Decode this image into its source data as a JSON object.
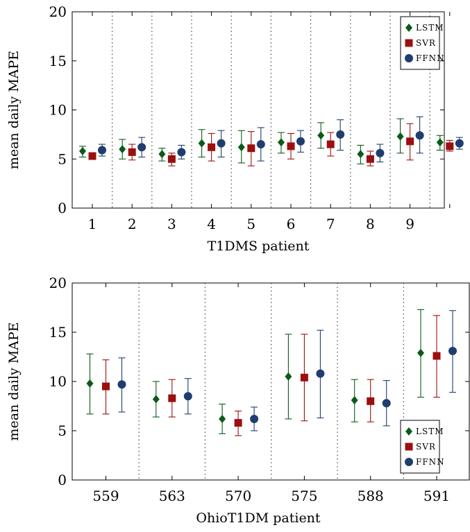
{
  "colors": {
    "LSTM": "#0b5a17",
    "SVR": "#9c0f0f",
    "FFNN": "#1f3d6e"
  },
  "chart_data": [
    {
      "type": "scatter",
      "subtype": "error-bar",
      "xlabel": "T1DMS patient",
      "ylabel": "mean daily MAPE",
      "ylim": [
        0,
        20
      ],
      "yticks": [
        0,
        5,
        10,
        15,
        20
      ],
      "categories": [
        "1",
        "2",
        "3",
        "4",
        "5",
        "6",
        "7",
        "8",
        "9",
        ""
      ],
      "legend": {
        "position": "top-right",
        "entries": [
          "LSTM",
          "SVR",
          "FFNN"
        ]
      },
      "series": [
        {
          "name": "LSTM",
          "marker": "diamond",
          "values": [
            5.8,
            6.0,
            5.5,
            6.6,
            6.2,
            6.7,
            7.4,
            5.5,
            7.3,
            6.7
          ],
          "err_low": [
            5.2,
            5.0,
            4.8,
            5.2,
            4.6,
            5.6,
            6.1,
            4.5,
            5.6,
            5.9
          ],
          "err_high": [
            6.3,
            7.0,
            6.1,
            8.0,
            7.9,
            7.7,
            8.7,
            6.4,
            9.1,
            7.4
          ]
        },
        {
          "name": "SVR",
          "marker": "square",
          "values": [
            5.3,
            5.7,
            5.0,
            6.2,
            6.1,
            6.3,
            6.5,
            5.0,
            6.8,
            6.3
          ],
          "err_low": [
            5.0,
            4.9,
            4.3,
            4.8,
            4.3,
            5.0,
            5.3,
            4.3,
            4.9,
            5.8
          ],
          "err_high": [
            5.5,
            6.5,
            5.6,
            7.6,
            7.8,
            7.6,
            7.7,
            5.8,
            8.6,
            6.9
          ]
        },
        {
          "name": "FFNN",
          "marker": "circle",
          "values": [
            5.9,
            6.2,
            5.7,
            6.6,
            6.5,
            6.8,
            7.5,
            5.6,
            7.4,
            6.6
          ],
          "err_low": [
            5.3,
            5.2,
            5.0,
            5.2,
            4.8,
            5.7,
            5.9,
            4.7,
            5.6,
            6.0
          ],
          "err_high": [
            6.5,
            7.2,
            6.4,
            7.9,
            8.2,
            7.9,
            9.0,
            6.5,
            9.3,
            7.2
          ]
        }
      ]
    },
    {
      "type": "scatter",
      "subtype": "error-bar",
      "xlabel": "OhioT1DM patient",
      "ylabel": "mean daily MAPE",
      "ylim": [
        0,
        20
      ],
      "yticks": [
        0,
        5,
        10,
        15,
        20
      ],
      "categories": [
        "559",
        "563",
        "570",
        "575",
        "588",
        "591"
      ],
      "legend": {
        "position": "bottom-right",
        "entries": [
          "LSTM",
          "SVR",
          "FFNN"
        ]
      },
      "series": [
        {
          "name": "LSTM",
          "marker": "diamond",
          "values": [
            9.8,
            8.2,
            6.2,
            10.5,
            8.1,
            12.9
          ],
          "err_low": [
            6.7,
            6.4,
            4.7,
            6.2,
            5.9,
            8.4
          ],
          "err_high": [
            12.8,
            10.0,
            7.7,
            14.8,
            10.2,
            17.3
          ]
        },
        {
          "name": "SVR",
          "marker": "square",
          "values": [
            9.5,
            8.3,
            5.8,
            10.4,
            8.0,
            12.6
          ],
          "err_low": [
            6.7,
            6.4,
            4.5,
            6.0,
            5.9,
            8.4
          ],
          "err_high": [
            12.2,
            10.2,
            7.0,
            14.8,
            10.2,
            16.7
          ]
        },
        {
          "name": "FFNN",
          "marker": "circle",
          "values": [
            9.7,
            8.5,
            6.2,
            10.8,
            7.8,
            13.1
          ],
          "err_low": [
            6.9,
            6.7,
            5.0,
            6.3,
            5.5,
            8.9
          ],
          "err_high": [
            12.4,
            10.3,
            7.4,
            15.2,
            10.1,
            17.2
          ]
        }
      ]
    }
  ]
}
